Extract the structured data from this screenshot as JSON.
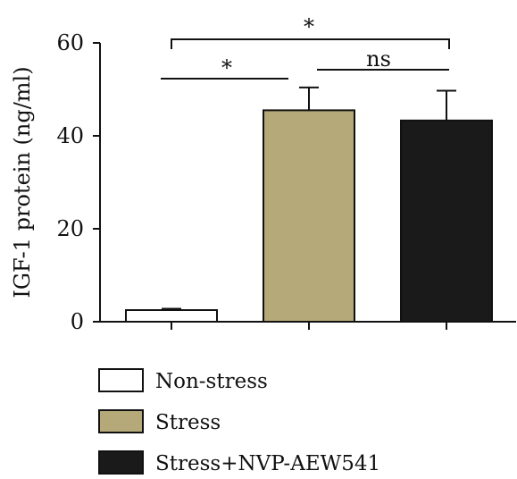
{
  "chart_data": {
    "type": "bar",
    "categories": [
      "Non-stress",
      "Stress",
      "Stress+NVP-AEW541"
    ],
    "values": [
      2.5,
      45.5,
      43.3
    ],
    "errors": [
      0.3,
      4.9,
      6.4
    ],
    "colors": [
      "#ffffff",
      "#b5a97a",
      "#1a1a1a"
    ],
    "ylabel": "IGF-1 protein (ng/ml)",
    "ylim": [
      0,
      60
    ],
    "yticks": [
      0,
      20,
      40,
      60
    ],
    "legend": {
      "placement": "bottom-left",
      "entries": [
        "Non-stress",
        "Stress",
        "Stress+NVP-AEW541"
      ]
    },
    "significance": [
      {
        "from": 0,
        "to": 2,
        "label": "*"
      },
      {
        "from": 0,
        "to": 1,
        "label": "*"
      },
      {
        "from": 1,
        "to": 2,
        "label": "ns"
      }
    ]
  }
}
